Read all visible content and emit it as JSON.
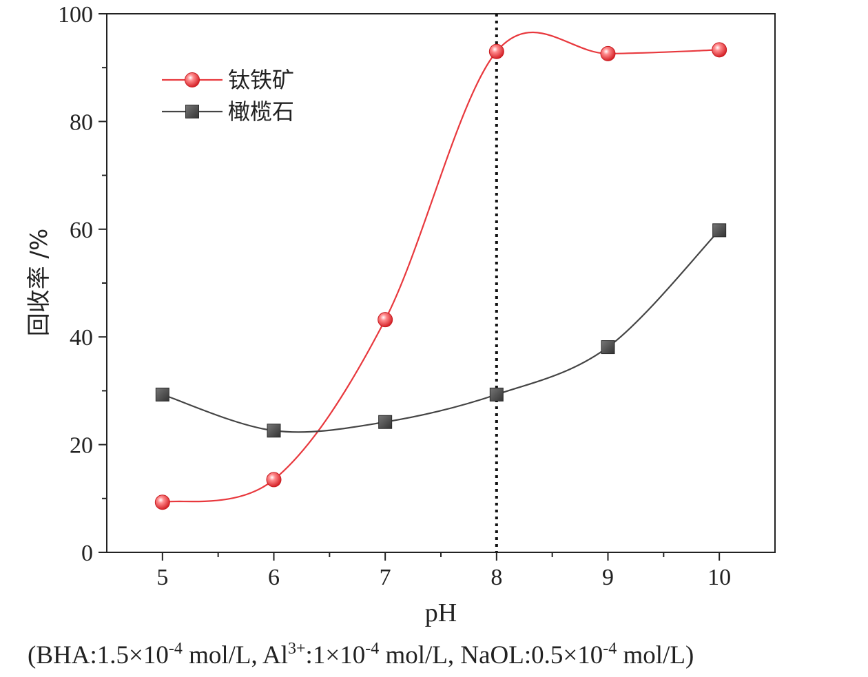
{
  "chart_data": {
    "type": "line",
    "title": "",
    "xlabel": "pH",
    "ylabel": "回收率 /%",
    "xlim": [
      4.5,
      10.5
    ],
    "ylim": [
      0,
      100
    ],
    "x_ticks": [
      "5",
      "6",
      "7",
      "8",
      "9",
      "10"
    ],
    "y_ticks": [
      "0",
      "20",
      "40",
      "60",
      "80",
      "100"
    ],
    "x": [
      5,
      6,
      7,
      8,
      9,
      10
    ],
    "series": [
      {
        "name": "钛铁矿",
        "values": [
          9.3,
          13.5,
          43.2,
          93.0,
          92.6,
          93.3
        ],
        "color": "#e8383d",
        "marker": "circle"
      },
      {
        "name": "橄榄石",
        "values": [
          29.3,
          22.6,
          24.2,
          29.3,
          38.1,
          59.8
        ],
        "color": "#444444",
        "marker": "square"
      }
    ],
    "reference_line": {
      "x": 8,
      "style": "dotted",
      "color": "#111111"
    },
    "legend_position": "top-left",
    "grid": false
  },
  "condition_note": {
    "part1": "(BHA:1.5×10",
    "exp1": "-4",
    "part2": " mol/L, Al",
    "exp2": "3+",
    "part3": ":1×10",
    "exp3": "-4",
    "part4": " mol/L, NaOL:0.5×10",
    "exp4": "-4",
    "part5": " mol/L)"
  }
}
